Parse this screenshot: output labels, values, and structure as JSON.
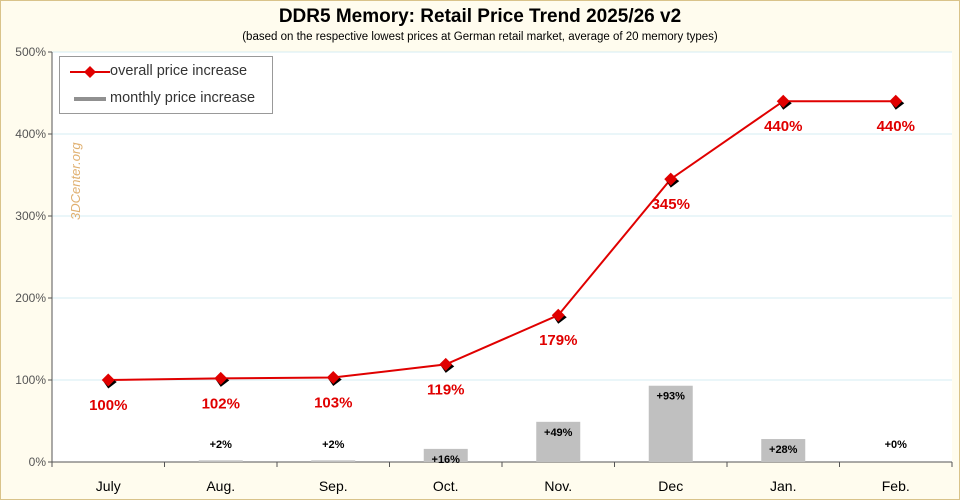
{
  "chart_data": {
    "type": "line",
    "title": "DDR5 Memory: Retail Price Trend 2025/26 v2",
    "subtitle": "(based on the respective lowest prices at German retail market, average of 20 memory types)",
    "categories": [
      "July",
      "Aug.",
      "Sep.",
      "Oct.",
      "Nov.",
      "Dec",
      "Jan.",
      "Feb."
    ],
    "ylim": [
      0,
      500
    ],
    "yticks": [
      0,
      100,
      200,
      300,
      400,
      500
    ],
    "ytick_labels": [
      "0%",
      "100%",
      "200%",
      "300%",
      "400%",
      "500%"
    ],
    "grid": true,
    "legend_position": "top-left",
    "series": [
      {
        "name": "overall price increase",
        "type": "line",
        "color": "#e00000",
        "marker": "diamond",
        "values": [
          100,
          102,
          103,
          119,
          179,
          345,
          440,
          440
        ],
        "labels": [
          "100%",
          "102%",
          "103%",
          "119%",
          "179%",
          "345%",
          "440%",
          "440%"
        ]
      },
      {
        "name": "monthly price increase",
        "type": "bar",
        "color": "#c0c0c0",
        "values": [
          null,
          2,
          2,
          16,
          49,
          93,
          28,
          0
        ],
        "labels": [
          "",
          "+2%",
          "+2%",
          "+16%",
          "+49%",
          "+93%",
          "+28%",
          "+0%"
        ]
      }
    ]
  },
  "watermark": "3DCenter.org"
}
